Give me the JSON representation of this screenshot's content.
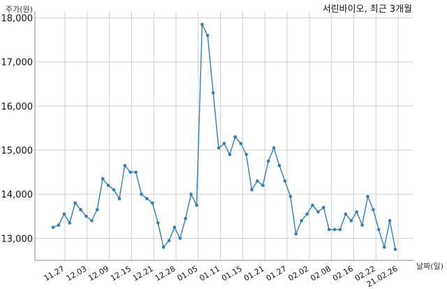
{
  "chart_data": {
    "type": "line",
    "title": "서린바이오, 최근 3개월",
    "ylabel": "주가(원)",
    "xlabel": "날짜(일)",
    "ylim": [
      12500,
      18150
    ],
    "yticks": [
      13000,
      14000,
      15000,
      16000,
      17000,
      18000
    ],
    "ytick_labels": [
      "13,000",
      "14,000",
      "15,000",
      "16,000",
      "17,000",
      "18,000"
    ],
    "xtick_labels": [
      "11.27",
      "12.03",
      "12.09",
      "12.15",
      "12.21",
      "12.28",
      "01.05",
      "01.11",
      "01.15",
      "01.21",
      "01.27",
      "02.02",
      "02.08",
      "02.16",
      "02.22",
      "21.02.26"
    ],
    "grid": true,
    "series": [
      {
        "color": "#2e7fb8",
        "values": [
          13250,
          13300,
          13550,
          13350,
          13800,
          13650,
          13500,
          13400,
          13650,
          14350,
          14200,
          14100,
          13900,
          14650,
          14500,
          14500,
          14000,
          13900,
          13800,
          13350,
          12800,
          12950,
          13250,
          13000,
          13450,
          14000,
          13750,
          17850,
          17600,
          16300,
          15050,
          15150,
          14900,
          15300,
          15150,
          14900,
          14100,
          14300,
          14200,
          14750,
          15050,
          14650,
          14300,
          13950,
          13100,
          13400,
          13550,
          13750,
          13600,
          13700,
          13200,
          13200,
          13200,
          13550,
          13400,
          13600,
          13300,
          13950,
          13650,
          13200,
          12800,
          13400,
          12750
        ]
      }
    ]
  }
}
